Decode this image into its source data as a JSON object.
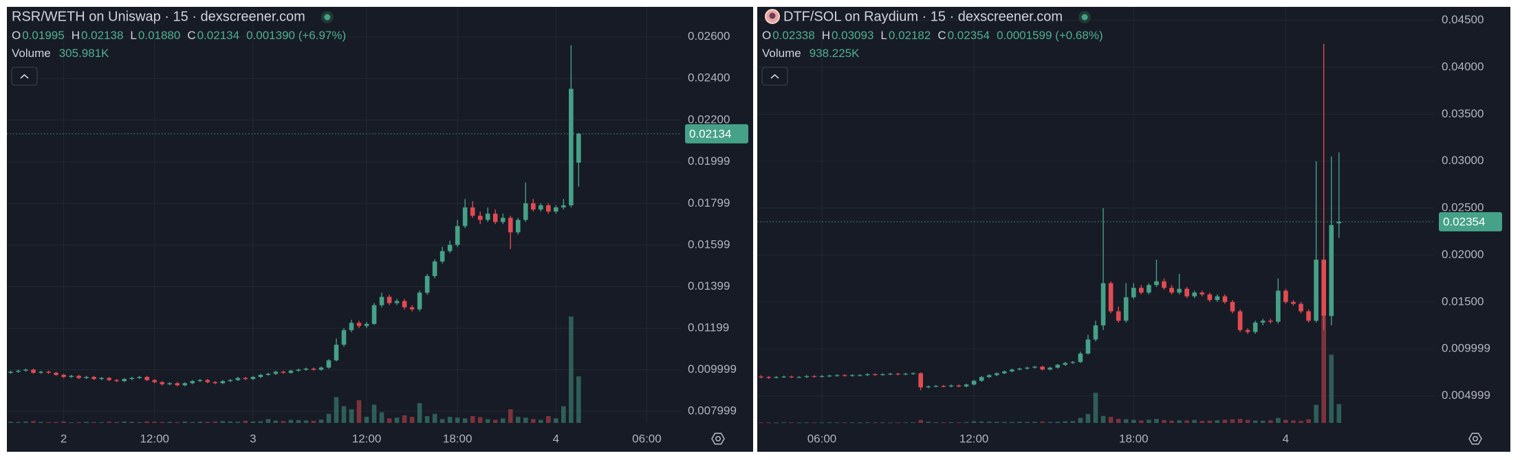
{
  "chart_data": [
    {
      "type": "candlestick",
      "title": "RSR/WETH on Uniswap · 15 · dexscreener.com",
      "readout": [
        {
          "key": "O",
          "value": "0.01995"
        },
        {
          "key": "H",
          "value": "0.02138"
        },
        {
          "key": "L",
          "value": "0.01880"
        },
        {
          "key": "C",
          "value": "0.02134"
        }
      ],
      "change": "0.001390 (+6.97%)",
      "volume_label": "Volume",
      "volume_readout": "305.981K",
      "up_color": "#45a187",
      "down_color": "#e24b51",
      "grid": true,
      "ylim": [
        0.00744,
        0.02744
      ],
      "yticks": [
        {
          "value": 0.026,
          "label": "0.02600"
        },
        {
          "value": 0.024,
          "label": "0.02400"
        },
        {
          "value": 0.022,
          "label": "0.02200"
        },
        0.01999,
        0.01799,
        0.01599,
        0.01399,
        0.01199,
        0.009999,
        0.007999
      ],
      "last_price": 0.02134,
      "categories": [
        null,
        null,
        null,
        null,
        null,
        null,
        null,
        "2",
        null,
        null,
        null,
        null,
        null,
        null,
        null,
        null,
        null,
        null,
        null,
        "12:00",
        null,
        null,
        null,
        null,
        null,
        null,
        null,
        null,
        null,
        null,
        null,
        null,
        "3",
        null,
        null,
        null,
        null,
        null,
        null,
        null,
        null,
        null,
        null,
        null,
        null,
        null,
        null,
        "12:00",
        null,
        null,
        null,
        null,
        null,
        null,
        null,
        null,
        null,
        null,
        null,
        "18:00",
        null,
        null,
        null,
        null,
        null,
        null,
        null,
        null,
        null,
        null,
        null,
        null,
        "4",
        null,
        null,
        null,
        null,
        null,
        null,
        null,
        null,
        null,
        null,
        null,
        "06:00",
        null,
        null,
        null,
        null
      ],
      "open": [
        0.00985,
        0.0099,
        0.00995,
        0.01,
        0.00985,
        0.0099,
        0.00985,
        0.00975,
        0.00965,
        0.0097,
        0.0096,
        0.00965,
        0.00955,
        0.0096,
        0.0095,
        0.00945,
        0.00955,
        0.0096,
        0.00965,
        0.0095,
        0.0094,
        0.0093,
        0.00935,
        0.00925,
        0.00935,
        0.00945,
        0.0095,
        0.0094,
        0.00935,
        0.00945,
        0.0095,
        0.0096,
        0.00955,
        0.00965,
        0.00975,
        0.0098,
        0.0099,
        0.00985,
        0.00995,
        0.01,
        0.01005,
        0.01,
        0.0101,
        0.01045,
        0.0112,
        0.0119,
        0.01225,
        0.0121,
        0.0122,
        0.0131,
        0.0135,
        0.0132,
        0.0133,
        0.013,
        0.0129,
        0.0137,
        0.0145,
        0.0152,
        0.0157,
        0.016,
        0.0169,
        0.0178,
        0.0174,
        0.0172,
        0.0175,
        0.0171,
        0.0173,
        0.0166,
        0.0172,
        0.018,
        0.0177,
        0.0179,
        0.0176,
        0.0178,
        0.0179,
        0.01995,
        null,
        null,
        null,
        null,
        null,
        null,
        null,
        null,
        null,
        null,
        null,
        null,
        null
      ],
      "high": [
        0.00995,
        0.01,
        0.01005,
        0.01005,
        0.00995,
        0.00995,
        0.0099,
        0.0098,
        0.00975,
        0.00975,
        0.0097,
        0.0097,
        0.00965,
        0.00965,
        0.00955,
        0.0096,
        0.00965,
        0.0097,
        0.0097,
        0.00955,
        0.00945,
        0.0094,
        0.0094,
        0.0094,
        0.0095,
        0.00955,
        0.00955,
        0.00945,
        0.0095,
        0.00955,
        0.00965,
        0.00965,
        0.0097,
        0.0098,
        0.00985,
        0.00995,
        0.00995,
        0.01,
        0.01005,
        0.0101,
        0.0101,
        0.01015,
        0.0105,
        0.0115,
        0.012,
        0.0124,
        0.01235,
        0.0123,
        0.0132,
        0.0137,
        0.0136,
        0.0134,
        0.0134,
        0.0131,
        0.0138,
        0.0146,
        0.0153,
        0.0159,
        0.0162,
        0.0172,
        0.0182,
        0.0181,
        0.0176,
        0.0178,
        0.0177,
        0.0175,
        0.0174,
        0.0173,
        0.019,
        0.0182,
        0.018,
        0.018,
        0.0179,
        0.0182,
        0.0256,
        0.02138,
        null,
        null,
        null,
        null,
        null,
        null,
        null,
        null,
        null,
        null,
        null,
        null,
        null
      ],
      "low": [
        0.0098,
        0.00985,
        0.0099,
        0.0098,
        0.0098,
        0.0098,
        0.0097,
        0.0096,
        0.0096,
        0.00955,
        0.00955,
        0.0095,
        0.0095,
        0.00945,
        0.0094,
        0.0094,
        0.0095,
        0.00955,
        0.00945,
        0.00935,
        0.00925,
        0.00925,
        0.0092,
        0.0092,
        0.0093,
        0.0094,
        0.00935,
        0.0093,
        0.0093,
        0.0094,
        0.00945,
        0.0095,
        0.0095,
        0.0096,
        0.0097,
        0.00975,
        0.0098,
        0.0098,
        0.0099,
        0.00995,
        0.00995,
        0.00995,
        0.01005,
        0.0104,
        0.0111,
        0.0118,
        0.012,
        0.012,
        0.01215,
        0.013,
        0.0131,
        0.0131,
        0.0129,
        0.0128,
        0.0128,
        0.0136,
        0.0144,
        0.0151,
        0.0156,
        0.0159,
        0.0168,
        0.0173,
        0.017,
        0.0171,
        0.017,
        0.017,
        0.0158,
        0.0165,
        0.0171,
        0.0176,
        0.0176,
        0.0175,
        0.0175,
        0.0177,
        0.0178,
        0.0188,
        null,
        null,
        null,
        null,
        null,
        null,
        null,
        null,
        null,
        null,
        null,
        null,
        null
      ],
      "close": [
        0.0099,
        0.00995,
        0.01,
        0.00985,
        0.0099,
        0.00985,
        0.00975,
        0.00965,
        0.0097,
        0.0096,
        0.00965,
        0.00955,
        0.0096,
        0.0095,
        0.00945,
        0.00955,
        0.0096,
        0.00965,
        0.0095,
        0.0094,
        0.0093,
        0.00935,
        0.00925,
        0.00935,
        0.00945,
        0.0095,
        0.0094,
        0.00935,
        0.00945,
        0.0095,
        0.0096,
        0.00955,
        0.00965,
        0.00975,
        0.0098,
        0.0099,
        0.00985,
        0.00995,
        0.01,
        0.01005,
        0.01,
        0.0101,
        0.01045,
        0.0112,
        0.0119,
        0.01225,
        0.0121,
        0.0122,
        0.0131,
        0.0135,
        0.0132,
        0.0133,
        0.013,
        0.0129,
        0.0137,
        0.0145,
        0.0152,
        0.0157,
        0.016,
        0.0169,
        0.0178,
        0.0174,
        0.0172,
        0.0175,
        0.0171,
        0.0173,
        0.0166,
        0.0172,
        0.018,
        0.0177,
        0.0179,
        0.0176,
        0.0178,
        0.0179,
        0.0235,
        0.02134,
        null,
        null,
        null,
        null,
        null,
        null,
        null,
        null,
        null,
        null,
        null,
        null,
        null
      ],
      "volume": [
        8000,
        6000,
        9000,
        12000,
        7000,
        5000,
        6000,
        9000,
        4000,
        5000,
        7000,
        6000,
        5000,
        8000,
        6000,
        9000,
        7000,
        5000,
        10000,
        8000,
        6000,
        7000,
        5000,
        9000,
        6000,
        8000,
        7000,
        9000,
        12000,
        10000,
        8000,
        14000,
        9000,
        11000,
        25000,
        15000,
        12000,
        20000,
        18000,
        16000,
        14000,
        22000,
        60000,
        170000,
        110000,
        90000,
        150000,
        40000,
        120000,
        70000,
        30000,
        35000,
        50000,
        40000,
        130000,
        45000,
        60000,
        25000,
        40000,
        35000,
        30000,
        45000,
        38000,
        25000,
        20000,
        30000,
        90000,
        40000,
        35000,
        25000,
        20000,
        45000,
        30000,
        110000,
        700000,
        305981,
        null,
        null,
        null,
        null,
        null,
        null,
        null,
        null,
        null,
        null,
        null,
        null,
        null
      ]
    },
    {
      "type": "candlestick",
      "title": "DTF/SOL on Raydium · 15 · dexscreener.com",
      "readout": [
        {
          "key": "O",
          "value": "0.02338"
        },
        {
          "key": "H",
          "value": "0.03093"
        },
        {
          "key": "L",
          "value": "0.02182"
        },
        {
          "key": "C",
          "value": "0.02354"
        }
      ],
      "change": "0.0001599 (+0.68%)",
      "volume_label": "Volume",
      "volume_readout": "938.225K",
      "up_color": "#45a187",
      "down_color": "#e24b51",
      "grid": true,
      "ylim": [
        0.00211,
        0.04644
      ],
      "yticks": [
        {
          "value": 0.045,
          "label": "0.04500"
        },
        {
          "value": 0.04,
          "label": "0.04000"
        },
        {
          "value": 0.035,
          "label": "0.03500"
        },
        {
          "value": 0.03,
          "label": "0.03000"
        },
        {
          "value": 0.025,
          "label": "0.02500"
        },
        {
          "value": 0.02,
          "label": "0.02000"
        },
        {
          "value": 0.015,
          "label": "0.01500"
        },
        0.009999,
        0.004999
      ],
      "last_price": 0.02354,
      "categories": [
        null,
        null,
        null,
        null,
        null,
        null,
        null,
        null,
        "06:00",
        null,
        null,
        null,
        null,
        null,
        null,
        null,
        null,
        null,
        null,
        null,
        null,
        null,
        null,
        null,
        null,
        null,
        null,
        null,
        "12:00",
        null,
        null,
        null,
        null,
        null,
        null,
        null,
        null,
        null,
        null,
        null,
        null,
        null,
        null,
        null,
        null,
        null,
        null,
        null,
        null,
        "18:00",
        null,
        null,
        null,
        null,
        null,
        null,
        null,
        null,
        null,
        null,
        null,
        null,
        null,
        null,
        null,
        null,
        null,
        null,
        null,
        "4",
        null,
        null,
        null,
        null,
        null,
        null,
        null,
        null,
        null,
        null,
        null,
        null,
        null,
        null,
        null,
        null,
        null,
        null,
        null
      ],
      "open": [
        0.00705,
        0.007,
        0.00695,
        0.007,
        0.00705,
        0.007,
        0.007,
        0.0071,
        0.00705,
        0.0071,
        0.00715,
        0.0072,
        0.00715,
        0.0072,
        0.0072,
        0.0073,
        0.00725,
        0.0073,
        0.00735,
        0.0073,
        0.00735,
        0.0074,
        0.0059,
        0.006,
        0.00605,
        0.006,
        0.0061,
        0.006,
        0.0062,
        0.0066,
        0.007,
        0.0072,
        0.0074,
        0.0076,
        0.0078,
        0.0079,
        0.008,
        0.0081,
        0.0078,
        0.008,
        0.0083,
        0.0085,
        0.0086,
        0.0095,
        0.011,
        0.0125,
        0.017,
        0.014,
        0.013,
        0.0155,
        0.0165,
        0.016,
        0.0168,
        0.0172,
        0.0165,
        0.016,
        0.0164,
        0.0156,
        0.016,
        0.0158,
        0.0152,
        0.0156,
        0.015,
        0.014,
        0.012,
        0.0118,
        0.0128,
        0.013,
        0.0129,
        0.0162,
        0.015,
        0.0148,
        0.014,
        0.013,
        0.0195,
        0.0135,
        0.02338,
        null,
        null,
        null,
        null,
        null,
        null,
        null,
        null,
        null,
        null,
        null,
        null
      ],
      "high": [
        0.0072,
        0.0071,
        0.0071,
        0.00715,
        0.00715,
        0.0071,
        0.0072,
        0.0072,
        0.0072,
        0.00725,
        0.0073,
        0.0073,
        0.0073,
        0.0073,
        0.0074,
        0.0074,
        0.0074,
        0.00745,
        0.00745,
        0.00745,
        0.0075,
        0.0075,
        0.0061,
        0.00615,
        0.00615,
        0.0062,
        0.0062,
        0.0063,
        0.0067,
        0.0071,
        0.0073,
        0.0075,
        0.0077,
        0.0079,
        0.008,
        0.0081,
        0.0082,
        0.0082,
        0.0081,
        0.0084,
        0.0086,
        0.0087,
        0.0097,
        0.0115,
        0.013,
        0.025,
        0.0172,
        0.0145,
        0.017,
        0.017,
        0.0168,
        0.017,
        0.0195,
        0.0175,
        0.0168,
        0.018,
        0.0166,
        0.0162,
        0.0162,
        0.016,
        0.0158,
        0.0158,
        0.0152,
        0.0142,
        0.0122,
        0.013,
        0.0132,
        0.0132,
        0.0175,
        0.0164,
        0.0152,
        0.015,
        0.0142,
        0.03,
        0.0425,
        0.0305,
        0.03093,
        null,
        null,
        null,
        null,
        null,
        null,
        null,
        null,
        null,
        null,
        null,
        null
      ],
      "low": [
        0.00685,
        0.0068,
        0.00685,
        0.0069,
        0.0069,
        0.0069,
        0.0069,
        0.00695,
        0.00695,
        0.007,
        0.00705,
        0.00705,
        0.00705,
        0.0071,
        0.0071,
        0.00715,
        0.00715,
        0.0072,
        0.0072,
        0.0072,
        0.00725,
        0.0056,
        0.0058,
        0.0059,
        0.0059,
        0.0059,
        0.0059,
        0.0059,
        0.0061,
        0.0065,
        0.0069,
        0.0071,
        0.0073,
        0.0075,
        0.0077,
        0.0078,
        0.0079,
        0.0077,
        0.0077,
        0.0079,
        0.0082,
        0.0084,
        0.0085,
        0.0094,
        0.0108,
        0.012,
        0.0138,
        0.0128,
        0.0128,
        0.0153,
        0.0158,
        0.0158,
        0.0166,
        0.0163,
        0.0158,
        0.0158,
        0.0154,
        0.0154,
        0.0156,
        0.015,
        0.015,
        0.0148,
        0.0138,
        0.0118,
        0.0116,
        0.0116,
        0.0125,
        0.0127,
        0.0127,
        0.0148,
        0.0146,
        0.0138,
        0.0128,
        0.0128,
        0.012,
        0.0125,
        0.02182,
        null,
        null,
        null,
        null,
        null,
        null,
        null,
        null,
        null,
        null,
        null,
        null
      ],
      "close": [
        0.007,
        0.00695,
        0.007,
        0.00705,
        0.007,
        0.007,
        0.0071,
        0.00705,
        0.0071,
        0.00715,
        0.0072,
        0.00715,
        0.0072,
        0.0072,
        0.0073,
        0.00725,
        0.0073,
        0.00735,
        0.0073,
        0.00735,
        0.0074,
        0.0059,
        0.006,
        0.00605,
        0.006,
        0.0061,
        0.006,
        0.0062,
        0.0066,
        0.007,
        0.0072,
        0.0074,
        0.0076,
        0.0078,
        0.0079,
        0.008,
        0.0081,
        0.0078,
        0.008,
        0.0083,
        0.0085,
        0.0086,
        0.0095,
        0.011,
        0.0125,
        0.017,
        0.014,
        0.013,
        0.0155,
        0.0165,
        0.016,
        0.0168,
        0.0172,
        0.0165,
        0.016,
        0.0164,
        0.0156,
        0.016,
        0.0158,
        0.0152,
        0.0156,
        0.015,
        0.014,
        0.012,
        0.0118,
        0.0128,
        0.013,
        0.0129,
        0.0162,
        0.015,
        0.0148,
        0.014,
        0.013,
        0.0195,
        0.0135,
        0.0232,
        0.02354,
        null,
        null,
        null,
        null,
        null,
        null,
        null,
        null,
        null,
        null,
        null,
        null
      ],
      "volume": [
        30000,
        25000,
        20000,
        35000,
        28000,
        22000,
        30000,
        26000,
        24000,
        32000,
        28000,
        25000,
        30000,
        22000,
        35000,
        27000,
        30000,
        25000,
        28000,
        32000,
        40000,
        150000,
        60000,
        35000,
        30000,
        40000,
        35000,
        45000,
        80000,
        70000,
        60000,
        55000,
        50000,
        45000,
        60000,
        50000,
        55000,
        70000,
        50000,
        60000,
        80000,
        90000,
        250000,
        450000,
        1500000,
        350000,
        300000,
        200000,
        180000,
        150000,
        120000,
        160000,
        200000,
        140000,
        110000,
        130000,
        120000,
        150000,
        100000,
        110000,
        130000,
        160000,
        180000,
        200000,
        150000,
        120000,
        110000,
        130000,
        250000,
        150000,
        120000,
        100000,
        180000,
        900000,
        5300000,
        3400000,
        938225,
        null,
        null,
        null,
        null,
        null,
        null,
        null,
        null,
        null,
        null,
        null,
        null
      ]
    }
  ]
}
